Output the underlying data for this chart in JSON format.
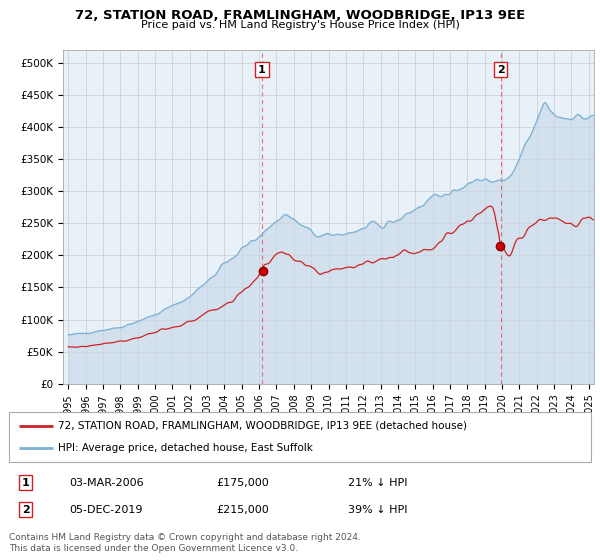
{
  "title": "72, STATION ROAD, FRAMLINGHAM, WOODBRIDGE, IP13 9EE",
  "subtitle": "Price paid vs. HM Land Registry's House Price Index (HPI)",
  "plot_bg_color": "#e8f0f8",
  "hpi_color": "#7ab0d4",
  "hpi_fill_color": "#c5d8ea",
  "price_color": "#cc2222",
  "grid_color": "#cccccc",
  "marker1_date_x": 2006.17,
  "marker1_price": 175000,
  "marker2_date_x": 2019.92,
  "marker2_price": 215000,
  "vline1_x": 2006.17,
  "vline2_x": 2019.92,
  "ylim": [
    0,
    520000
  ],
  "xlim": [
    1994.7,
    2025.3
  ],
  "legend_label_price": "72, STATION ROAD, FRAMLINGHAM, WOODBRIDGE, IP13 9EE (detached house)",
  "legend_label_hpi": "HPI: Average price, detached house, East Suffolk",
  "table_row1": [
    "1",
    "03-MAR-2006",
    "£175,000",
    "21% ↓ HPI"
  ],
  "table_row2": [
    "2",
    "05-DEC-2019",
    "£215,000",
    "39% ↓ HPI"
  ],
  "footer": "Contains HM Land Registry data © Crown copyright and database right 2024.\nThis data is licensed under the Open Government Licence v3.0.",
  "ytick_labels": [
    "£0",
    "£50K",
    "£100K",
    "£150K",
    "£200K",
    "£250K",
    "£300K",
    "£350K",
    "£400K",
    "£450K",
    "£500K"
  ],
  "ytick_values": [
    0,
    50000,
    100000,
    150000,
    200000,
    250000,
    300000,
    350000,
    400000,
    450000,
    500000
  ]
}
